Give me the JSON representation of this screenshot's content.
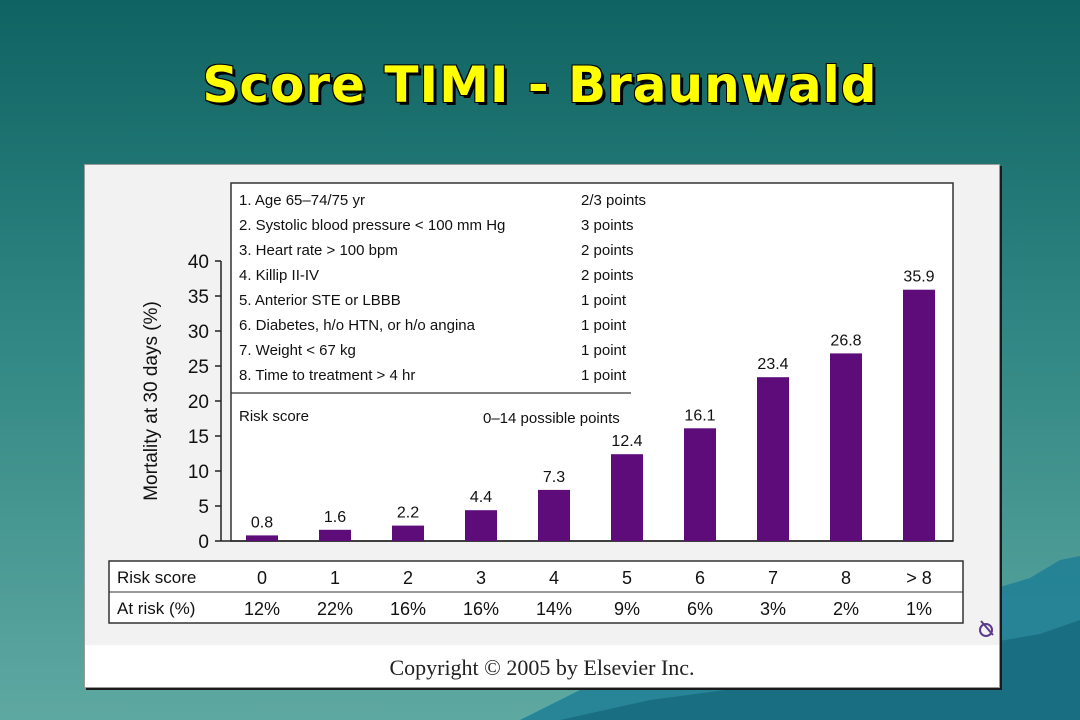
{
  "slide": {
    "title": "Score TIMI - Braunwald",
    "copyright": "Copyright © 2005 by Elsevier Inc."
  },
  "colors": {
    "bar": "#5e0c7a",
    "title": "#ffff00",
    "background_top": "#0f6362",
    "background_bottom": "#5fa8a2"
  },
  "criteria": [
    {
      "label": "1. Age 65–74/75 yr",
      "points": "2/3 points"
    },
    {
      "label": "2. Systolic blood pressure < 100 mm Hg",
      "points": "3 points"
    },
    {
      "label": "3. Heart rate > 100 bpm",
      "points": "2 points"
    },
    {
      "label": "4. Killip II-IV",
      "points": "2 points"
    },
    {
      "label": "5. Anterior STE or LBBB",
      "points": "1 point"
    },
    {
      "label": "6. Diabetes, h/o HTN, or h/o angina",
      "points": "1 point"
    },
    {
      "label": "7. Weight < 67 kg",
      "points": "1 point"
    },
    {
      "label": "8. Time to treatment > 4 hr",
      "points": "1 point"
    }
  ],
  "risk_box": {
    "label": "Risk score",
    "total": "0–14 possible points"
  },
  "risk_table": {
    "row1_label": "Risk score",
    "row2_label": "At risk (%)",
    "scores": [
      "0",
      "1",
      "2",
      "3",
      "4",
      "5",
      "6",
      "7",
      "8",
      "> 8"
    ],
    "at_risk": [
      "12%",
      "22%",
      "16%",
      "16%",
      "14%",
      "9%",
      "6%",
      "3%",
      "2%",
      "1%"
    ]
  },
  "chart_data": {
    "type": "bar",
    "categories": [
      "0",
      "1",
      "2",
      "3",
      "4",
      "5",
      "6",
      "7",
      "8",
      "> 8"
    ],
    "values": [
      0.8,
      1.6,
      2.2,
      4.4,
      7.3,
      12.4,
      16.1,
      23.4,
      26.8,
      35.9
    ],
    "data_labels": [
      "0.8",
      "1.6",
      "2.2",
      "4.4",
      "7.3",
      "12.4",
      "16.1",
      "23.4",
      "26.8",
      "35.9"
    ],
    "ylabel": "Mortality at 30 days (%)",
    "xlabel": "",
    "ylim": [
      0,
      40
    ],
    "yticks": [
      0,
      5,
      10,
      15,
      20,
      25,
      30,
      35,
      40
    ],
    "grid": false
  }
}
